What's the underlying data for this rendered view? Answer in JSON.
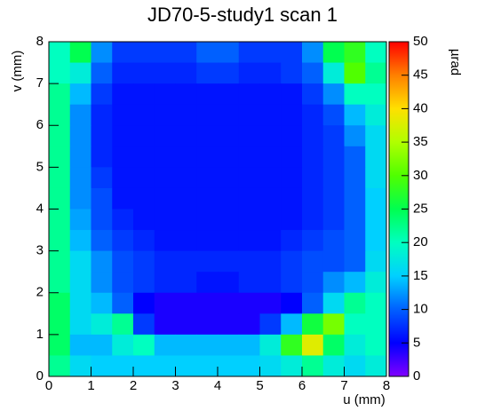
{
  "chart_data": {
    "type": "heatmap",
    "title": "JD70-5-study1 scan 1",
    "xlabel": "u (mm)",
    "ylabel": "v (mm)",
    "zlabel": "µrad",
    "xlim": [
      0,
      8
    ],
    "ylim": [
      0,
      8
    ],
    "zlim": [
      0,
      50
    ],
    "xticks": [
      0,
      1,
      2,
      3,
      4,
      5,
      6,
      7,
      8
    ],
    "yticks": [
      0,
      1,
      2,
      3,
      4,
      5,
      6,
      7,
      8
    ],
    "zticks": [
      0,
      5,
      10,
      15,
      20,
      25,
      30,
      35,
      40,
      45,
      50
    ],
    "palette": [
      "#8000ff",
      "#0000ff",
      "#0060ff",
      "#00d0ff",
      "#00ffc0",
      "#00ff50",
      "#50ff00",
      "#b0ff00",
      "#ffe000",
      "#ff8000",
      "#ff0000"
    ],
    "z": [
      [
        20,
        25,
        12,
        8,
        8,
        8,
        8,
        10,
        10,
        8,
        8,
        8,
        12,
        25,
        28,
        20
      ],
      [
        20,
        18,
        10,
        7,
        7,
        7,
        7,
        8,
        8,
        7,
        7,
        8,
        10,
        18,
        30,
        22
      ],
      [
        22,
        14,
        8,
        6,
        6,
        6,
        6,
        6,
        6,
        6,
        6,
        6,
        8,
        12,
        20,
        20
      ],
      [
        22,
        12,
        7,
        6,
        6,
        6,
        6,
        6,
        6,
        6,
        6,
        6,
        7,
        9,
        14,
        18
      ],
      [
        22,
        12,
        7,
        6,
        6,
        6,
        6,
        6,
        6,
        6,
        6,
        6,
        7,
        8,
        12,
        16
      ],
      [
        22,
        12,
        7,
        6,
        6,
        6,
        6,
        6,
        6,
        6,
        6,
        6,
        7,
        8,
        10,
        16
      ],
      [
        22,
        12,
        8,
        6,
        6,
        6,
        6,
        6,
        6,
        6,
        6,
        6,
        7,
        8,
        10,
        16
      ],
      [
        22,
        12,
        9,
        6,
        6,
        6,
        6,
        6,
        6,
        6,
        6,
        6,
        7,
        8,
        10,
        15
      ],
      [
        22,
        13,
        9,
        7,
        6,
        6,
        6,
        6,
        6,
        6,
        6,
        6,
        7,
        8,
        10,
        15
      ],
      [
        22,
        14,
        10,
        8,
        7,
        6,
        6,
        6,
        6,
        6,
        6,
        7,
        8,
        9,
        10,
        15
      ],
      [
        22,
        16,
        12,
        9,
        8,
        7,
        7,
        7,
        7,
        7,
        7,
        8,
        9,
        9,
        10,
        16
      ],
      [
        22,
        16,
        12,
        9,
        8,
        7,
        7,
        6,
        6,
        7,
        7,
        8,
        9,
        12,
        14,
        18
      ],
      [
        24,
        16,
        14,
        10,
        5,
        4,
        4,
        4,
        4,
        4,
        4,
        5,
        10,
        16,
        22,
        20
      ],
      [
        24,
        16,
        18,
        22,
        8,
        4,
        4,
        4,
        4,
        4,
        8,
        14,
        26,
        32,
        20,
        20
      ],
      [
        24,
        14,
        14,
        18,
        20,
        14,
        14,
        14,
        14,
        14,
        18,
        28,
        38,
        24,
        18,
        20
      ],
      [
        22,
        16,
        15,
        15,
        15,
        15,
        15,
        15,
        15,
        15,
        16,
        18,
        22,
        18,
        16,
        18
      ]
    ]
  }
}
